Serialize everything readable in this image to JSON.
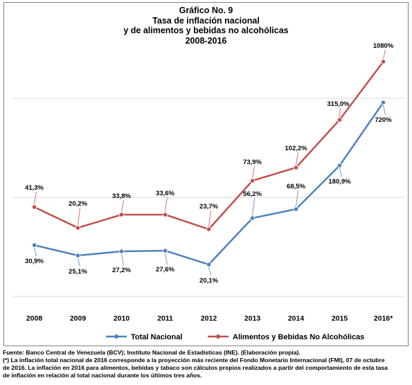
{
  "chart_data": {
    "type": "line",
    "title": "Gráfico No. 9",
    "subtitle_lines": [
      "Tasa de inflación nacional",
      "y de alimentos y bebidas no alcohólicas",
      "2008-2016"
    ],
    "categories": [
      "2008",
      "2009",
      "2010",
      "2011",
      "2012",
      "2013",
      "2014",
      "2015",
      "2016*"
    ],
    "series": [
      {
        "name": "Total Nacional",
        "color": "#4f81bd",
        "labels": [
          "30,9%",
          "25,1%",
          "27,2%",
          "27,6%",
          "20,1%",
          "56,2%",
          "68,5%",
          "180,9%",
          "720%"
        ],
        "values": [
          30.9,
          25.1,
          27.2,
          27.6,
          20.1,
          56.2,
          68.5,
          180.9,
          720
        ]
      },
      {
        "name": "Alimentos y Bebidas No Alcohólicas",
        "color": "#c0504d",
        "labels": [
          "41,3%",
          "20,2%",
          "33,8%",
          "33,6%",
          "23,7%",
          "73,9%",
          "102,2%",
          "315,0%",
          "1080%"
        ],
        "values": [
          41.3,
          20.2,
          33.8,
          33.6,
          23.7,
          73.9,
          102.2,
          315.0,
          1080
        ]
      }
    ],
    "legend_position": "bottom",
    "grid": true,
    "y_axis_visible": false
  },
  "footnotes": {
    "source": "Fuente: Banco Central de Venezuela (BCV); Instituto Nacional de Estadísticas (INE).  (Elaboración propia).",
    "note_line1": "(*) La inflación total nacional de 2016 corresponde a la proyección más reciente del Fondo Monetario Internacional (FMI), 07 de octubre",
    "note_line2": "de 2016. La inflación en 2016 para alimentos,  bebidas y tabaco son cálculos propios realizados a partir del comportamiento de esta tasa",
    "note_line3": "de inflación en relación al total nacional durante los últimos tres años."
  }
}
